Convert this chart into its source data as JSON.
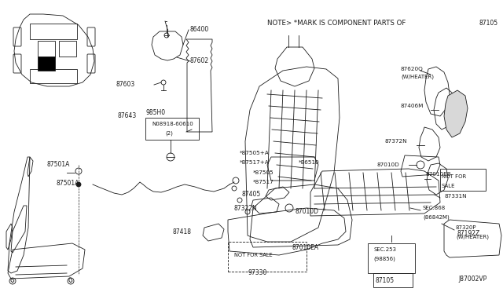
{
  "bg_color": "#ffffff",
  "line_color": "#1a1a1a",
  "fig_width": 6.4,
  "fig_height": 3.72,
  "dpi": 100,
  "note_text": "NOTE> *MARK IS COMPONENT PARTS OF",
  "note_code": "87105",
  "footer_code": "J87002VP"
}
